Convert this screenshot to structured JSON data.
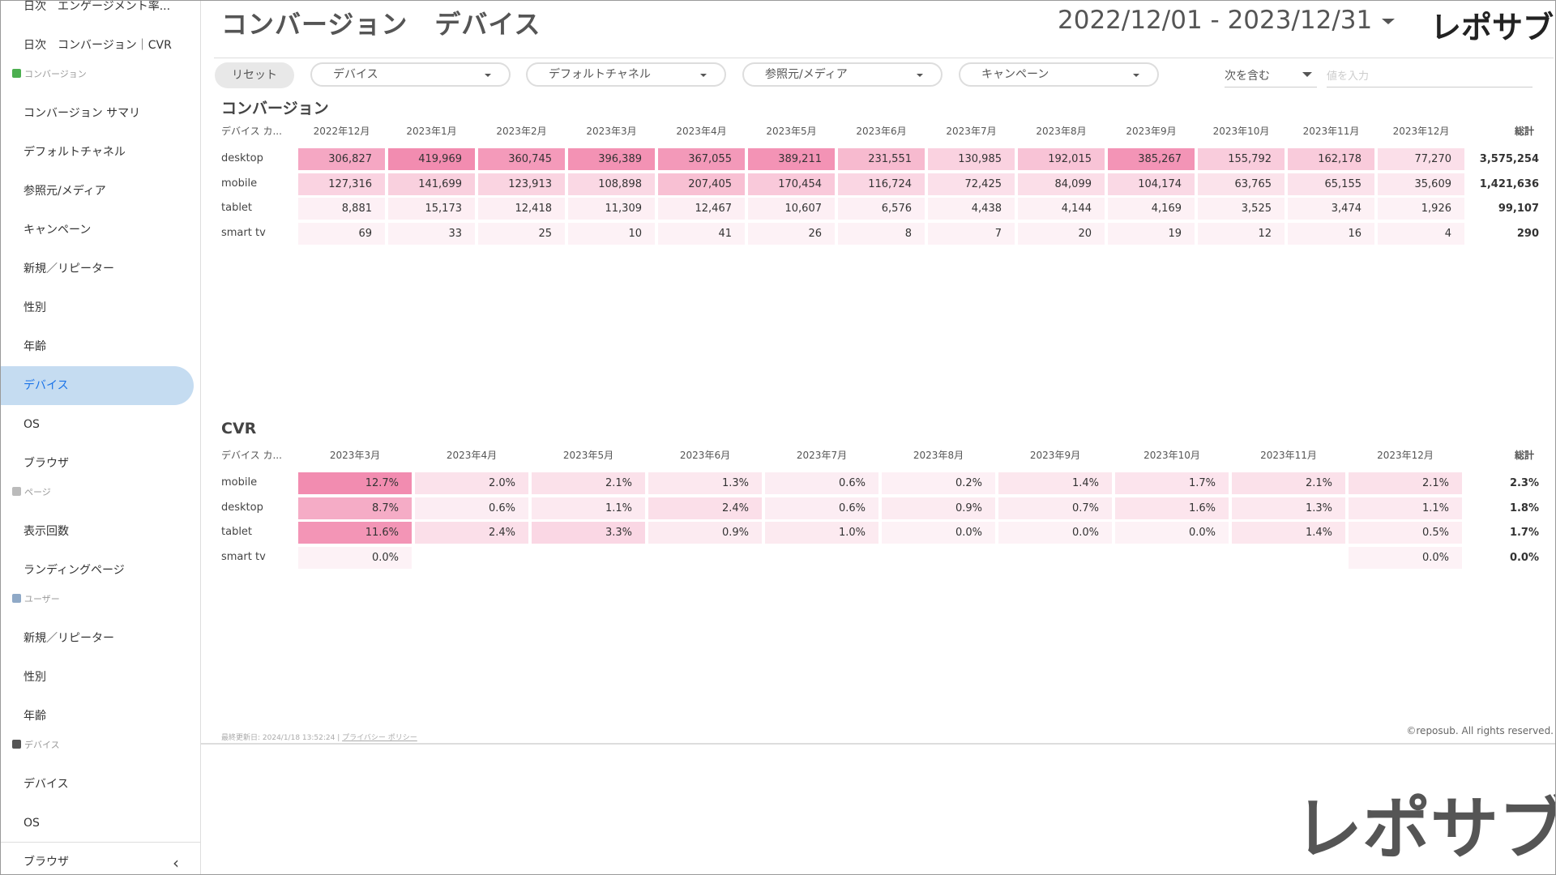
{
  "header": {
    "title": "コンバージョン　デバイス",
    "date_range": "2022/12/01 - 2023/12/31",
    "logo": "レポサブ"
  },
  "sidebar": {
    "top": [
      "日次　エンゲージメント率...",
      "日次　コンバージョン｜CVR"
    ],
    "groups": [
      {
        "heading": "コンバージョン",
        "items": [
          "コンバージョン サマリ",
          "デフォルトチャネル",
          "参照元/メディア",
          "キャンペーン",
          "新規／リピーター",
          "性別",
          "年齢",
          "デバイス",
          "OS",
          "ブラウザ"
        ]
      },
      {
        "heading": "ページ",
        "items": [
          "表示回数",
          "ランディングページ"
        ]
      },
      {
        "heading": "ユーザー",
        "items": [
          "新規／リピーター",
          "性別",
          "年齢"
        ]
      },
      {
        "heading": "デバイス",
        "items": [
          "デバイス",
          "OS",
          "ブラウザ"
        ]
      }
    ]
  },
  "filters": {
    "reset": "リセット",
    "dropdowns": [
      "デバイス",
      "デフォルトチャネル",
      "参照元/メディア",
      "キャンペーン"
    ],
    "match": "次を含む",
    "input_placeholder": "値を入力"
  },
  "conversion": {
    "title": "コンバージョン",
    "header": [
      "デバイス カ...",
      "2022年12月",
      "2023年1月",
      "2023年2月",
      "2023年3月",
      "2023年4月",
      "2023年5月",
      "2023年6月",
      "2023年7月",
      "2023年8月",
      "2023年9月",
      "2023年10月",
      "2023年11月",
      "2023年12月",
      "総計"
    ],
    "rows": [
      [
        "desktop",
        "306,827",
        "419,969",
        "360,745",
        "396,389",
        "367,055",
        "389,211",
        "231,551",
        "130,985",
        "192,015",
        "385,267",
        "155,792",
        "162,178",
        "77,270",
        "3,575,254"
      ],
      [
        "mobile",
        "127,316",
        "141,699",
        "123,913",
        "108,898",
        "207,405",
        "170,454",
        "116,724",
        "72,425",
        "84,099",
        "104,174",
        "63,765",
        "65,155",
        "35,609",
        "1,421,636"
      ],
      [
        "tablet",
        "8,881",
        "15,173",
        "12,418",
        "11,309",
        "12,467",
        "10,607",
        "6,576",
        "4,438",
        "4,144",
        "4,169",
        "3,525",
        "3,474",
        "1,926",
        "99,107"
      ],
      [
        "smart tv",
        "69",
        "33",
        "25",
        "10",
        "41",
        "26",
        "8",
        "7",
        "20",
        "19",
        "12",
        "16",
        "4",
        "290"
      ]
    ]
  },
  "cvr": {
    "title": "CVR",
    "header": [
      "デバイス カ...",
      "2023年3月",
      "2023年4月",
      "2023年5月",
      "2023年6月",
      "2023年7月",
      "2023年8月",
      "2023年9月",
      "2023年10月",
      "2023年11月",
      "2023年12月",
      "総計"
    ],
    "rows": [
      [
        "mobile",
        "12.7%",
        "2.0%",
        "2.1%",
        "1.3%",
        "0.6%",
        "0.2%",
        "1.4%",
        "1.7%",
        "2.1%",
        "2.1%",
        "2.3%"
      ],
      [
        "desktop",
        "8.7%",
        "0.6%",
        "1.1%",
        "2.4%",
        "0.6%",
        "0.9%",
        "0.7%",
        "1.6%",
        "1.3%",
        "1.1%",
        "1.8%"
      ],
      [
        "tablet",
        "11.6%",
        "2.4%",
        "3.3%",
        "0.9%",
        "1.0%",
        "0.0%",
        "0.0%",
        "0.0%",
        "1.4%",
        "0.5%",
        "1.7%"
      ],
      [
        "smart tv",
        "0.0%",
        null,
        null,
        null,
        null,
        null,
        null,
        null,
        null,
        "0.0%",
        "0.0%"
      ]
    ]
  },
  "footer": {
    "updated": "最終更新日: 2024/1/18 13:52:24",
    "privacy": "プライバシー ポリシー",
    "copyright": "©reposub. All rights reserved."
  }
}
